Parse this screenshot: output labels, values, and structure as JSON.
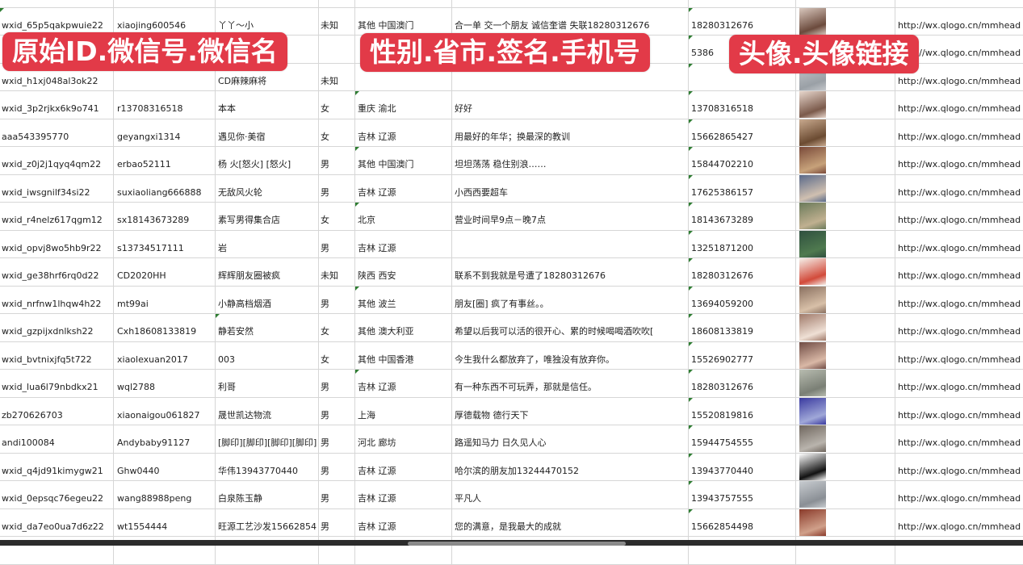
{
  "overlay_labels": [
    "原始ID.微信号.微信名",
    "性别.省市.签名.手机号",
    "头像.头像链接"
  ],
  "colors": {
    "label_bg": "#e23a48",
    "grid": "#d6d6d6"
  },
  "rows": [
    [
      "wxid_65p5qakpwuie22",
      "xiaojing600546",
      "丫丫～小",
      "未知",
      "其他 中国澳门",
      "合一单 交一个朋友 诚信奎谱 失联18280312676",
      "18280312676",
      "",
      "http://wx.qlogo.cn/mmhead"
    ],
    [
      "",
      "",
      "",
      "",
      "",
      "",
      "5386",
      "",
      "http://wx.qlogo.cn/mmhead"
    ],
    [
      "wxid_h1xj048al3ok22",
      "",
      "CD麻辣麻将",
      "未知",
      "",
      "",
      "",
      "",
      "http://wx.qlogo.cn/mmhead"
    ],
    [
      "wxid_3p2rjkx6k9o741",
      "r13708316518",
      "本本",
      "女",
      "重庆 渝北",
      "好好",
      "13708316518",
      "",
      "http://wx.qlogo.cn/mmhead"
    ],
    [
      "aaa543395770",
      "geyangxi1314",
      "遇见你·美宿",
      "女",
      "吉林 辽源",
      "用最好的年华；换最深的教训",
      "15662865427",
      "",
      "http://wx.qlogo.cn/mmhead"
    ],
    [
      "wxid_z0j2j1qyq4qm22",
      "erbao52111",
      "杨 火[怒火] [怒火]",
      "男",
      "其他 中国澳门",
      "坦坦荡荡 稳住别浪……",
      "15844702210",
      "",
      "http://wx.qlogo.cn/mmhead"
    ],
    [
      "wxid_iwsgnilf34si22",
      "suxiaoliang666888",
      "无敌风火轮",
      "男",
      "吉林 辽源",
      "小西西要超车",
      "17625386157",
      "",
      "http://wx.qlogo.cn/mmhead"
    ],
    [
      "wxid_r4nelz617qgm12",
      "sx18143673289",
      "素写男得集合店",
      "女",
      "北京",
      "营业时间早9点－晚7点",
      "18143673289",
      "",
      "http://wx.qlogo.cn/mmhead"
    ],
    [
      "wxid_opvj8wo5hb9r22",
      "s13734517111",
      "岩",
      "男",
      "吉林 辽源",
      "",
      "13251871200",
      "",
      "http://wx.qlogo.cn/mmhead"
    ],
    [
      "wxid_ge38hrf6rq0d22",
      "CD2020HH",
      "辉辉朋友圈被疯",
      "未知",
      "陕西 西安",
      "联系不到我就是号遭了18280312676",
      "18280312676",
      "",
      "http://wx.qlogo.cn/mmhead"
    ],
    [
      "wxid_nrfnw1lhqw4h22",
      "mt99ai",
      "小静高档烟酒",
      "男",
      "其他 波兰",
      "朋友[圈] 疯了有事丝。。",
      "13694059200",
      "",
      "http://wx.qlogo.cn/mmhead"
    ],
    [
      "wxid_gzpijxdnlksh22",
      "Cxh18608133819",
      "静若安然",
      "女",
      "其他 澳大利亚",
      "希望以后我可以活的很开心、累的时候喝喝酒吹吹[",
      "18608133819",
      "",
      "http://wx.qlogo.cn/mmhead"
    ],
    [
      "wxid_bvtnixjfq5t722",
      "xiaolexuan2017",
      "003",
      "女",
      "其他 中国香港",
      "今生我什么都放弃了，唯独没有放弃你。",
      "15526902777",
      "",
      "http://wx.qlogo.cn/mmhead"
    ],
    [
      "wxid_lua6l79nbdkx21",
      "wql2788",
      "利哥",
      "男",
      "吉林 辽源",
      "有一种东西不可玩弄，那就是信任。",
      "18280312676",
      "",
      "http://wx.qlogo.cn/mmhead"
    ],
    [
      "zb270626703",
      "xiaonaigou061827",
      "晟世凯达物流",
      "男",
      "上海",
      "厚德载物 德行天下",
      "15520819816",
      "",
      "http://wx.qlogo.cn/mmhead"
    ],
    [
      "andi100084",
      "Andybaby91127",
      "[脚印][脚印][脚印][脚印]",
      "男",
      "河北 廊坊",
      "路遥知马力 日久见人心",
      "15944754555",
      "",
      "http://wx.qlogo.cn/mmhead"
    ],
    [
      "wxid_q4jd91kimygw21",
      "Ghw0440",
      "华伟13943770440",
      "男",
      "吉林 辽源",
      "哈尔滨的朋友加13244470152",
      "13943770440",
      "",
      "http://wx.qlogo.cn/mmhead"
    ],
    [
      "wxid_0epsqc76egeu22",
      "wang88988peng",
      "白泉陈玉静",
      "男",
      "吉林 辽源",
      "平凡人",
      "13943757555",
      "",
      "http://wx.qlogo.cn/mmhead"
    ],
    [
      "wxid_da7eo0ua7d6z22",
      "wt1554444",
      "旺源工艺沙发15662854",
      "男",
      "吉林 辽源",
      "您的满意，是我最大的成就",
      "15662854498",
      "",
      "http://wx.qlogo.cn/mmhead"
    ],
    [
      "",
      "",
      "",
      "",
      "",
      "",
      "",
      "",
      ""
    ]
  ]
}
